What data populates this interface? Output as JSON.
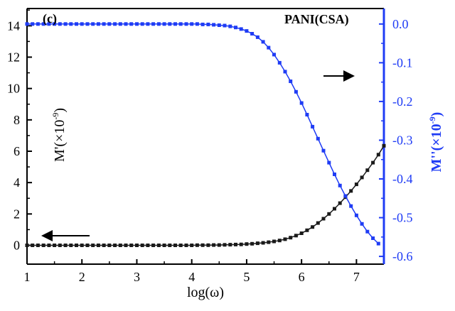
{
  "chart_data": {
    "type": "scatter",
    "panel_label": "(c)",
    "annotation": "PANI(CSA)",
    "xlabel": "log(ω)",
    "ylabel_left": {
      "main": "M'(×10",
      "sup": "-9",
      "close": ")"
    },
    "ylabel_right": {
      "main": "M''(×10",
      "sup": "-9",
      "close": ")"
    },
    "xlim": [
      1,
      7.5
    ],
    "ylim_left": [
      -1.2,
      15.1
    ],
    "ylim_right": [
      -0.62,
      0.04
    ],
    "x_ticks": [
      "1",
      "2",
      "3",
      "4",
      "5",
      "6",
      "7"
    ],
    "y_left_ticks": [
      "0",
      "2",
      "4",
      "6",
      "8",
      "10",
      "12",
      "14"
    ],
    "y_right_ticks": [
      "0.0",
      "-0.1",
      "-0.2",
      "-0.3",
      "-0.4",
      "-0.5",
      "-0.6"
    ],
    "series": [
      {
        "axis": "left",
        "color": "#1a1a1a",
        "x": [
          1.0,
          1.1,
          1.2,
          1.3,
          1.4,
          1.5,
          1.6,
          1.7,
          1.8,
          1.9,
          2.0,
          2.1,
          2.2,
          2.3,
          2.4,
          2.5,
          2.6,
          2.7,
          2.8,
          2.9,
          3.0,
          3.1,
          3.2,
          3.3,
          3.4,
          3.5,
          3.6,
          3.7,
          3.8,
          3.9,
          4.0,
          4.1,
          4.2,
          4.3,
          4.4,
          4.5,
          4.6,
          4.7,
          4.8,
          4.9,
          5.0,
          5.1,
          5.2,
          5.3,
          5.4,
          5.5,
          5.6,
          5.7,
          5.8,
          5.9,
          6.0,
          6.1,
          6.2,
          6.3,
          6.4,
          6.5,
          6.6,
          6.7,
          6.8,
          6.9,
          7.0,
          7.1,
          7.2,
          7.3,
          7.4,
          7.5
        ],
        "y": [
          0.0,
          0.0,
          0.0,
          0.0,
          0.0,
          0.0,
          0.0,
          0.0,
          0.0,
          0.0,
          0.0,
          0.0,
          0.0,
          0.0,
          0.0,
          0.0,
          0.0,
          0.0,
          0.0,
          0.0,
          0.0,
          0.0,
          0.0,
          0.0,
          0.0,
          0.0,
          0.0,
          0.0,
          0.0,
          0.0,
          0.0,
          0.01,
          0.01,
          0.01,
          0.02,
          0.02,
          0.03,
          0.04,
          0.05,
          0.06,
          0.08,
          0.1,
          0.13,
          0.16,
          0.2,
          0.25,
          0.31,
          0.39,
          0.49,
          0.62,
          0.77,
          0.96,
          1.17,
          1.42,
          1.7,
          2.0,
          2.33,
          2.69,
          3.07,
          3.47,
          3.89,
          4.33,
          4.79,
          5.27,
          5.78,
          6.35
        ]
      },
      {
        "axis": "right",
        "color": "#1f3cf5",
        "x": [
          1.0,
          1.1,
          1.2,
          1.3,
          1.4,
          1.5,
          1.6,
          1.7,
          1.8,
          1.9,
          2.0,
          2.1,
          2.2,
          2.3,
          2.4,
          2.5,
          2.6,
          2.7,
          2.8,
          2.9,
          3.0,
          3.1,
          3.2,
          3.3,
          3.4,
          3.5,
          3.6,
          3.7,
          3.8,
          3.9,
          4.0,
          4.1,
          4.2,
          4.3,
          4.4,
          4.5,
          4.6,
          4.7,
          4.8,
          4.9,
          5.0,
          5.1,
          5.2,
          5.3,
          5.4,
          5.5,
          5.6,
          5.7,
          5.8,
          5.9,
          6.0,
          6.1,
          6.2,
          6.3,
          6.4,
          6.5,
          6.6,
          6.7,
          6.8,
          6.9,
          7.0,
          7.1,
          7.2,
          7.3,
          7.4
        ],
        "y": [
          0.0,
          0.0,
          0.0,
          0.0,
          0.0,
          0.0,
          0.0,
          0.0,
          0.0,
          0.0,
          0.0,
          0.0,
          0.0,
          0.0,
          0.0,
          0.0,
          0.0,
          0.0,
          0.0,
          0.0,
          0.0,
          0.0,
          0.0,
          0.0,
          0.0,
          0.0,
          0.0,
          0.0,
          0.0,
          0.0,
          0.0,
          0.0,
          -0.001,
          -0.001,
          -0.002,
          -0.003,
          -0.004,
          -0.006,
          -0.009,
          -0.013,
          -0.018,
          -0.025,
          -0.034,
          -0.046,
          -0.061,
          -0.079,
          -0.1,
          -0.123,
          -0.148,
          -0.175,
          -0.204,
          -0.234,
          -0.265,
          -0.296,
          -0.327,
          -0.358,
          -0.388,
          -0.417,
          -0.444,
          -0.47,
          -0.494,
          -0.516,
          -0.536,
          -0.553,
          -0.567
        ]
      }
    ]
  }
}
